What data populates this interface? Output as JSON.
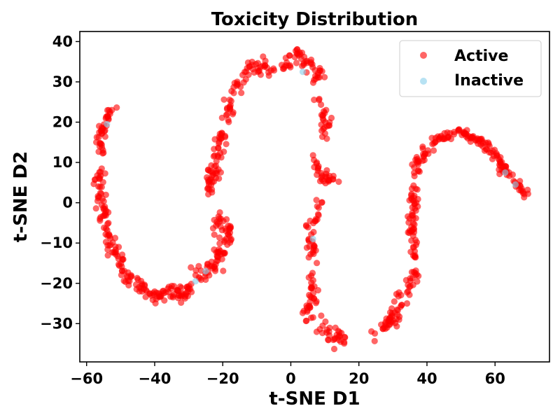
{
  "chart_data": {
    "type": "scatter",
    "title": "Toxicity Distribution",
    "xlabel": "t-SNE D1",
    "ylabel": "t-SNE D2",
    "xlim": [
      -62,
      76
    ],
    "ylim": [
      -39.5,
      42.5
    ],
    "xticks": [
      -60,
      -40,
      -20,
      0,
      20,
      40,
      60
    ],
    "yticks": [
      -30,
      -20,
      -10,
      0,
      10,
      20,
      30,
      40
    ],
    "xtick_labels": [
      "−60",
      "−40",
      "−20",
      "0",
      "20",
      "40",
      "60"
    ],
    "ytick_labels": [
      "−30",
      "−20",
      "−10",
      "0",
      "10",
      "20",
      "30",
      "40"
    ],
    "grid": false,
    "legend_position": "top-right",
    "series": [
      {
        "name": "Active",
        "color": "#ff0000",
        "opacity": 0.6,
        "segments": [
          {
            "points": [
              [
                -51.5,
                24.5
              ],
              [
                -53,
                22.5
              ],
              [
                -54.5,
                20
              ],
              [
                -55.5,
                17
              ],
              [
                -56,
                14
              ],
              [
                -56.5,
                11.5
              ]
            ],
            "spread": [
              0.8,
              0.9
            ],
            "n": 40
          },
          {
            "points": [
              [
                -56.5,
                8
              ],
              [
                -56,
                4
              ],
              [
                -55.5,
                0
              ],
              [
                -55,
                -4
              ],
              [
                -53.5,
                -8
              ],
              [
                -52,
                -12
              ],
              [
                -50,
                -15
              ],
              [
                -48,
                -18
              ],
              [
                -46,
                -20
              ],
              [
                -43,
                -22
              ],
              [
                -40,
                -23.5
              ],
              [
                -37,
                -22.5
              ],
              [
                -34,
                -22
              ],
              [
                -31,
                -23
              ],
              [
                -29,
                -21
              ]
            ],
            "spread": [
              0.9,
              0.9
            ],
            "n": 170
          },
          {
            "points": [
              [
                -28,
                -17
              ],
              [
                -26,
                -17.5
              ],
              [
                -23,
                -16
              ],
              [
                -21,
                -13
              ],
              [
                -20,
                -10
              ],
              [
                -18,
                -7
              ],
              [
                -20,
                -5
              ],
              [
                -22,
                -4
              ]
            ],
            "spread": [
              0.9,
              1.0
            ],
            "n": 80
          },
          {
            "points": [
              [
                -24,
                8
              ],
              [
                -24,
                4
              ],
              [
                -22,
                6
              ],
              [
                -22,
                10
              ],
              [
                -21,
                14
              ],
              [
                -20,
                18
              ],
              [
                -19,
                22
              ],
              [
                -18,
                25
              ]
            ],
            "spread": [
              0.9,
              1.2
            ],
            "n": 75
          },
          {
            "points": [
              [
                -17,
                27
              ],
              [
                -15,
                30
              ],
              [
                -13,
                32
              ],
              [
                -10,
                34
              ],
              [
                -8,
                34
              ],
              [
                -6,
                33
              ],
              [
                -4,
                33
              ]
            ],
            "spread": [
              1.0,
              1.0
            ],
            "n": 45
          },
          {
            "points": [
              [
                -1,
                33
              ],
              [
                0,
                35
              ],
              [
                1,
                37
              ],
              [
                3,
                36
              ],
              [
                5,
                34
              ],
              [
                7,
                33
              ],
              [
                8,
                31
              ]
            ],
            "spread": [
              1.0,
              1.0
            ],
            "n": 50
          },
          {
            "points": [
              [
                8,
                26
              ],
              [
                9,
                23
              ],
              [
                10,
                20
              ],
              [
                10,
                18
              ]
            ],
            "spread": [
              0.8,
              1.3
            ],
            "n": 25
          },
          {
            "points": [
              [
                7,
                11
              ],
              [
                8,
                8
              ],
              [
                10,
                6
              ],
              [
                12,
                6
              ],
              [
                14,
                6
              ]
            ],
            "spread": [
              0.9,
              1.2
            ],
            "n": 30
          },
          {
            "points": [
              [
                8,
                0
              ],
              [
                8,
                -3
              ],
              [
                5,
                -6
              ],
              [
                7,
                -10
              ],
              [
                6,
                -13
              ]
            ],
            "spread": [
              0.8,
              1.2
            ],
            "n": 35
          },
          {
            "points": [
              [
                6,
                -18
              ],
              [
                6,
                -21
              ],
              [
                7,
                -24
              ],
              [
                5,
                -27
              ],
              [
                7,
                -29
              ]
            ],
            "spread": [
              0.8,
              1.2
            ],
            "n": 35
          },
          {
            "points": [
              [
                9,
                -30
              ],
              [
                10,
                -32
              ],
              [
                11,
                -33
              ],
              [
                13,
                -33.5
              ],
              [
                15,
                -34
              ]
            ],
            "spread": [
              1.0,
              1.0
            ],
            "n": 30
          },
          {
            "points": [
              [
                25,
                -33
              ],
              [
                27,
                -31
              ],
              [
                29,
                -30
              ],
              [
                31,
                -27
              ],
              [
                33,
                -23
              ],
              [
                35,
                -20
              ],
              [
                36,
                -17
              ]
            ],
            "spread": [
              0.9,
              1.0
            ],
            "n": 65
          },
          {
            "points": [
              [
                36,
                -14
              ],
              [
                36,
                -10
              ],
              [
                35,
                -6
              ],
              [
                36,
                -2
              ],
              [
                36,
                2
              ],
              [
                36.5,
                5
              ],
              [
                37,
                8
              ],
              [
                38,
                11
              ],
              [
                40,
                13
              ]
            ],
            "spread": [
              0.8,
              0.9
            ],
            "n": 80
          },
          {
            "points": [
              [
                42,
                15
              ],
              [
                45,
                16.5
              ],
              [
                48,
                17
              ],
              [
                51,
                17
              ],
              [
                54,
                16
              ],
              [
                57,
                14
              ],
              [
                60,
                12
              ],
              [
                62,
                9
              ],
              [
                64,
                7
              ],
              [
                66,
                5
              ],
              [
                68,
                3
              ],
              [
                70,
                2
              ]
            ],
            "spread": [
              0.6,
              0.6
            ],
            "n": 120
          }
        ]
      },
      {
        "name": "Inactive",
        "color": "#87ceeb",
        "opacity": 0.6,
        "points": [
          [
            -54,
            19.5
          ],
          [
            -28,
            -19.5
          ],
          [
            -25,
            -17
          ],
          [
            3.5,
            32.5
          ],
          [
            6.5,
            -9
          ],
          [
            63,
            7.5
          ],
          [
            66,
            4.5
          ]
        ]
      }
    ]
  }
}
